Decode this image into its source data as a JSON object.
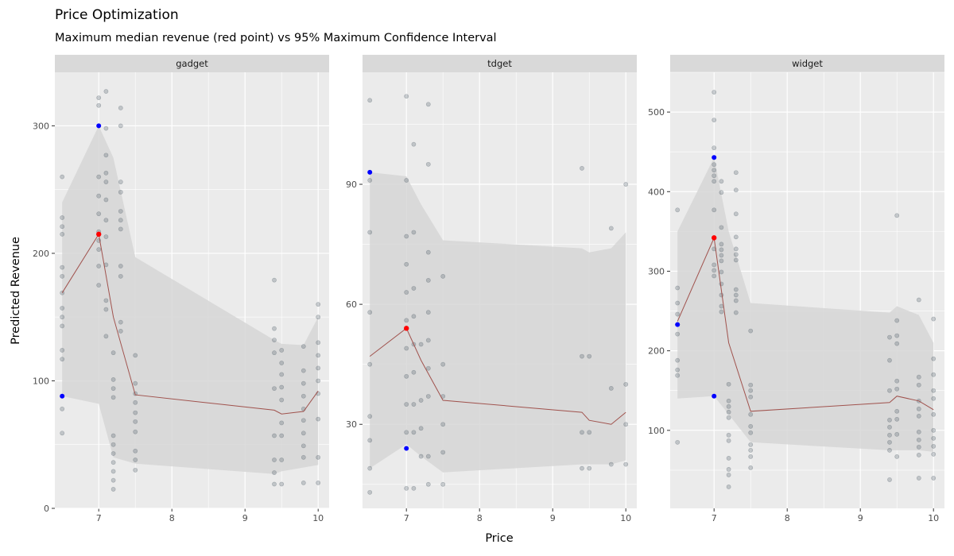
{
  "title": "Price Optimization",
  "subtitle": "Maximum median revenue (red point) vs 95% Maximum Confidence Interval",
  "xlabel": "Price",
  "ylabel": "Predicted Revenue",
  "colors": {
    "panel_bg": "#ebebeb",
    "strip_bg": "#d9d9d9",
    "grid": "#ffffff",
    "ribbon": "#d6d6d6",
    "line": "#a0524d",
    "point": "#2b3a4a",
    "max_point": "#ff0000",
    "ci_point": "#0000ff"
  },
  "chart_data": [
    {
      "type": "scatter",
      "facet": "gadget",
      "xlim": [
        6.4,
        10.15
      ],
      "ylim": [
        0,
        342
      ],
      "xticks": [
        7,
        8,
        9,
        10
      ],
      "yticks": [
        0,
        100,
        200,
        300
      ],
      "grid": true,
      "ribbon": {
        "x": [
          6.5,
          7,
          7.2,
          7.5,
          9.4,
          9.5,
          9.8,
          10
        ],
        "lower": [
          88,
          82,
          40,
          35,
          27,
          29,
          32,
          34
        ],
        "upper": [
          240,
          300,
          275,
          197,
          132,
          129,
          128,
          150
        ]
      },
      "median": {
        "x": [
          6.5,
          7,
          7.2,
          7.5,
          9.4,
          9.5,
          9.8,
          10
        ],
        "y": [
          169,
          215,
          150,
          89,
          77,
          74,
          76,
          92
        ]
      },
      "max_point": {
        "x": 7,
        "y": 215
      },
      "ci_points": [
        {
          "x": 6.5,
          "y": 88
        },
        {
          "x": 7,
          "y": 300
        }
      ],
      "points": [
        [
          6.5,
          260
        ],
        [
          6.5,
          228
        ],
        [
          6.5,
          221
        ],
        [
          6.5,
          215
        ],
        [
          6.5,
          189
        ],
        [
          6.5,
          182
        ],
        [
          6.5,
          169
        ],
        [
          6.5,
          157
        ],
        [
          6.5,
          150
        ],
        [
          6.5,
          143
        ],
        [
          6.5,
          124
        ],
        [
          6.5,
          117
        ],
        [
          6.5,
          78
        ],
        [
          6.5,
          59
        ],
        [
          7,
          322
        ],
        [
          7,
          316
        ],
        [
          7,
          300
        ],
        [
          7,
          260
        ],
        [
          7,
          245
        ],
        [
          7,
          231
        ],
        [
          7,
          217
        ],
        [
          7,
          210
        ],
        [
          7,
          203
        ],
        [
          7,
          190
        ],
        [
          7,
          175
        ],
        [
          7.1,
          327
        ],
        [
          7.1,
          298
        ],
        [
          7.1,
          277
        ],
        [
          7.1,
          263
        ],
        [
          7.1,
          256
        ],
        [
          7.1,
          242
        ],
        [
          7.1,
          226
        ],
        [
          7.1,
          213
        ],
        [
          7.1,
          191
        ],
        [
          7.1,
          163
        ],
        [
          7.1,
          156
        ],
        [
          7.1,
          135
        ],
        [
          7.2,
          122
        ],
        [
          7.2,
          101
        ],
        [
          7.2,
          94
        ],
        [
          7.2,
          87
        ],
        [
          7.2,
          57
        ],
        [
          7.2,
          50
        ],
        [
          7.2,
          43
        ],
        [
          7.2,
          36
        ],
        [
          7.2,
          29
        ],
        [
          7.2,
          22
        ],
        [
          7.2,
          15
        ],
        [
          7.3,
          314
        ],
        [
          7.3,
          300
        ],
        [
          7.3,
          256
        ],
        [
          7.3,
          248
        ],
        [
          7.3,
          233
        ],
        [
          7.3,
          226
        ],
        [
          7.3,
          219
        ],
        [
          7.3,
          190
        ],
        [
          7.3,
          182
        ],
        [
          7.3,
          146
        ],
        [
          7.3,
          139
        ],
        [
          7.5,
          120
        ],
        [
          7.5,
          98
        ],
        [
          7.5,
          90
        ],
        [
          7.5,
          83
        ],
        [
          7.5,
          75
        ],
        [
          7.5,
          68
        ],
        [
          7.5,
          60
        ],
        [
          7.5,
          45
        ],
        [
          7.5,
          38
        ],
        [
          7.5,
          30
        ],
        [
          9.4,
          179
        ],
        [
          9.4,
          141
        ],
        [
          9.4,
          132
        ],
        [
          9.4,
          122
        ],
        [
          9.4,
          94
        ],
        [
          9.4,
          57
        ],
        [
          9.4,
          38
        ],
        [
          9.4,
          28
        ],
        [
          9.4,
          19
        ],
        [
          9.5,
          124
        ],
        [
          9.5,
          114
        ],
        [
          9.5,
          105
        ],
        [
          9.5,
          95
        ],
        [
          9.5,
          85
        ],
        [
          9.5,
          67
        ],
        [
          9.5,
          57
        ],
        [
          9.5,
          38
        ],
        [
          9.5,
          19
        ],
        [
          9.8,
          127
        ],
        [
          9.8,
          108
        ],
        [
          9.8,
          98
        ],
        [
          9.8,
          88
        ],
        [
          9.8,
          78
        ],
        [
          9.8,
          69
        ],
        [
          9.8,
          59
        ],
        [
          9.8,
          49
        ],
        [
          9.8,
          40
        ],
        [
          9.8,
          20
        ],
        [
          10,
          160
        ],
        [
          10,
          150
        ],
        [
          10,
          130
        ],
        [
          10,
          120
        ],
        [
          10,
          110
        ],
        [
          10,
          100
        ],
        [
          10,
          90
        ],
        [
          10,
          70
        ],
        [
          10,
          40
        ],
        [
          10,
          20
        ]
      ]
    },
    {
      "type": "scatter",
      "facet": "tdget",
      "xlim": [
        6.4,
        10.15
      ],
      "ylim": [
        9,
        118
      ],
      "xticks": [
        7,
        8,
        9,
        10
      ],
      "yticks": [
        30,
        60,
        90
      ],
      "grid": true,
      "ribbon": {
        "x": [
          6.5,
          7,
          7.2,
          7.5,
          9.4,
          9.5,
          9.8,
          10
        ],
        "lower": [
          19,
          25,
          22,
          18,
          20,
          20,
          20,
          21
        ],
        "upper": [
          93,
          92,
          85,
          76,
          74,
          73,
          74,
          78
        ]
      },
      "median": {
        "x": [
          6.5,
          7,
          7.2,
          7.5,
          9.4,
          9.5,
          9.8,
          10
        ],
        "y": [
          47,
          54,
          46,
          36,
          33,
          31,
          30,
          33
        ]
      },
      "max_point": {
        "x": 7,
        "y": 54
      },
      "ci_points": [
        {
          "x": 6.5,
          "y": 93
        },
        {
          "x": 7,
          "y": 24
        }
      ],
      "points": [
        [
          6.5,
          111
        ],
        [
          6.5,
          91
        ],
        [
          6.5,
          78
        ],
        [
          6.5,
          58
        ],
        [
          6.5,
          45
        ],
        [
          6.5,
          32
        ],
        [
          6.5,
          26
        ],
        [
          6.5,
          19
        ],
        [
          6.5,
          13
        ],
        [
          7,
          112
        ],
        [
          7,
          91
        ],
        [
          7,
          77
        ],
        [
          7,
          70
        ],
        [
          7,
          63
        ],
        [
          7,
          56
        ],
        [
          7,
          49
        ],
        [
          7,
          42
        ],
        [
          7,
          35
        ],
        [
          7,
          28
        ],
        [
          7,
          14
        ],
        [
          7.1,
          100
        ],
        [
          7.1,
          78
        ],
        [
          7.1,
          64
        ],
        [
          7.1,
          57
        ],
        [
          7.1,
          50
        ],
        [
          7.1,
          43
        ],
        [
          7.1,
          35
        ],
        [
          7.1,
          28
        ],
        [
          7.1,
          14
        ],
        [
          7.2,
          50
        ],
        [
          7.2,
          36
        ],
        [
          7.2,
          29
        ],
        [
          7.2,
          22
        ],
        [
          7.3,
          110
        ],
        [
          7.3,
          95
        ],
        [
          7.3,
          73
        ],
        [
          7.3,
          66
        ],
        [
          7.3,
          58
        ],
        [
          7.3,
          51
        ],
        [
          7.3,
          44
        ],
        [
          7.3,
          37
        ],
        [
          7.3,
          22
        ],
        [
          7.3,
          15
        ],
        [
          7.5,
          67
        ],
        [
          7.5,
          45
        ],
        [
          7.5,
          37
        ],
        [
          7.5,
          30
        ],
        [
          7.5,
          23
        ],
        [
          7.5,
          15
        ],
        [
          9.4,
          94
        ],
        [
          9.4,
          47
        ],
        [
          9.4,
          28
        ],
        [
          9.4,
          19
        ],
        [
          9.5,
          47
        ],
        [
          9.5,
          28
        ],
        [
          9.5,
          19
        ],
        [
          9.8,
          79
        ],
        [
          9.8,
          39
        ],
        [
          9.8,
          20
        ],
        [
          10,
          90
        ],
        [
          10,
          40
        ],
        [
          10,
          30
        ],
        [
          10,
          20
        ]
      ]
    },
    {
      "type": "scatter",
      "facet": "widget",
      "xlim": [
        6.4,
        10.15
      ],
      "ylim": [
        2,
        550
      ],
      "xticks": [
        7,
        8,
        9,
        10
      ],
      "yticks": [
        100,
        200,
        300,
        400,
        500
      ],
      "grid": true,
      "ribbon": {
        "x": [
          6.5,
          7,
          7.2,
          7.5,
          9.4,
          9.5,
          9.8,
          10
        ],
        "lower": [
          140,
          143,
          120,
          85,
          75,
          75,
          75,
          73
        ],
        "upper": [
          350,
          443,
          350,
          260,
          248,
          256,
          245,
          210
        ]
      },
      "median": {
        "x": [
          6.5,
          7,
          7.2,
          7.5,
          9.4,
          9.5,
          9.8,
          10
        ],
        "y": [
          237,
          342,
          210,
          124,
          135,
          143,
          137,
          126
        ]
      },
      "max_point": {
        "x": 7,
        "y": 342
      },
      "ci_points": [
        {
          "x": 6.5,
          "y": 233
        },
        {
          "x": 7,
          "y": 443
        },
        {
          "x": 7,
          "y": 143
        }
      ],
      "points": [
        [
          6.5,
          377
        ],
        [
          6.5,
          279
        ],
        [
          6.5,
          260
        ],
        [
          6.5,
          246
        ],
        [
          6.5,
          233
        ],
        [
          6.5,
          221
        ],
        [
          6.5,
          188
        ],
        [
          6.5,
          176
        ],
        [
          6.5,
          169
        ],
        [
          6.5,
          85
        ],
        [
          7,
          525
        ],
        [
          7,
          490
        ],
        [
          7,
          455
        ],
        [
          7,
          434
        ],
        [
          7,
          427
        ],
        [
          7,
          420
        ],
        [
          7,
          413
        ],
        [
          7,
          377
        ],
        [
          7,
          328
        ],
        [
          7,
          308
        ],
        [
          7,
          301
        ],
        [
          7,
          294
        ],
        [
          7.1,
          413
        ],
        [
          7.1,
          399
        ],
        [
          7.1,
          355
        ],
        [
          7.1,
          334
        ],
        [
          7.1,
          327
        ],
        [
          7.1,
          320
        ],
        [
          7.1,
          313
        ],
        [
          7.1,
          299
        ],
        [
          7.1,
          284
        ],
        [
          7.1,
          270
        ],
        [
          7.1,
          256
        ],
        [
          7.1,
          249
        ],
        [
          7.2,
          158
        ],
        [
          7.2,
          137
        ],
        [
          7.2,
          130
        ],
        [
          7.2,
          123
        ],
        [
          7.2,
          116
        ],
        [
          7.2,
          94
        ],
        [
          7.2,
          87
        ],
        [
          7.2,
          65
        ],
        [
          7.2,
          51
        ],
        [
          7.2,
          44
        ],
        [
          7.2,
          29
        ],
        [
          7.3,
          424
        ],
        [
          7.3,
          402
        ],
        [
          7.3,
          372
        ],
        [
          7.3,
          343
        ],
        [
          7.3,
          328
        ],
        [
          7.3,
          321
        ],
        [
          7.3,
          314
        ],
        [
          7.3,
          277
        ],
        [
          7.3,
          270
        ],
        [
          7.3,
          263
        ],
        [
          7.3,
          248
        ],
        [
          7.5,
          225
        ],
        [
          7.5,
          157
        ],
        [
          7.5,
          150
        ],
        [
          7.5,
          142
        ],
        [
          7.5,
          120
        ],
        [
          7.5,
          105
        ],
        [
          7.5,
          97
        ],
        [
          7.5,
          82
        ],
        [
          7.5,
          75
        ],
        [
          7.5,
          67
        ],
        [
          7.5,
          53
        ],
        [
          9.4,
          217
        ],
        [
          9.4,
          188
        ],
        [
          9.4,
          150
        ],
        [
          9.4,
          113
        ],
        [
          9.4,
          104
        ],
        [
          9.4,
          94
        ],
        [
          9.4,
          85
        ],
        [
          9.4,
          75
        ],
        [
          9.4,
          38
        ],
        [
          9.5,
          370
        ],
        [
          9.5,
          238
        ],
        [
          9.5,
          219
        ],
        [
          9.5,
          209
        ],
        [
          9.5,
          162
        ],
        [
          9.5,
          152
        ],
        [
          9.5,
          124
        ],
        [
          9.5,
          114
        ],
        [
          9.5,
          95
        ],
        [
          9.5,
          67
        ],
        [
          9.8,
          264
        ],
        [
          9.8,
          167
        ],
        [
          9.8,
          157
        ],
        [
          9.8,
          137
        ],
        [
          9.8,
          127
        ],
        [
          9.8,
          118
        ],
        [
          9.8,
          98
        ],
        [
          9.8,
          88
        ],
        [
          9.8,
          79
        ],
        [
          9.8,
          69
        ],
        [
          9.8,
          40
        ],
        [
          10,
          240
        ],
        [
          10,
          190
        ],
        [
          10,
          170
        ],
        [
          10,
          150
        ],
        [
          10,
          140
        ],
        [
          10,
          120
        ],
        [
          10,
          100
        ],
        [
          10,
          90
        ],
        [
          10,
          80
        ],
        [
          10,
          70
        ],
        [
          10,
          40
        ]
      ]
    }
  ]
}
